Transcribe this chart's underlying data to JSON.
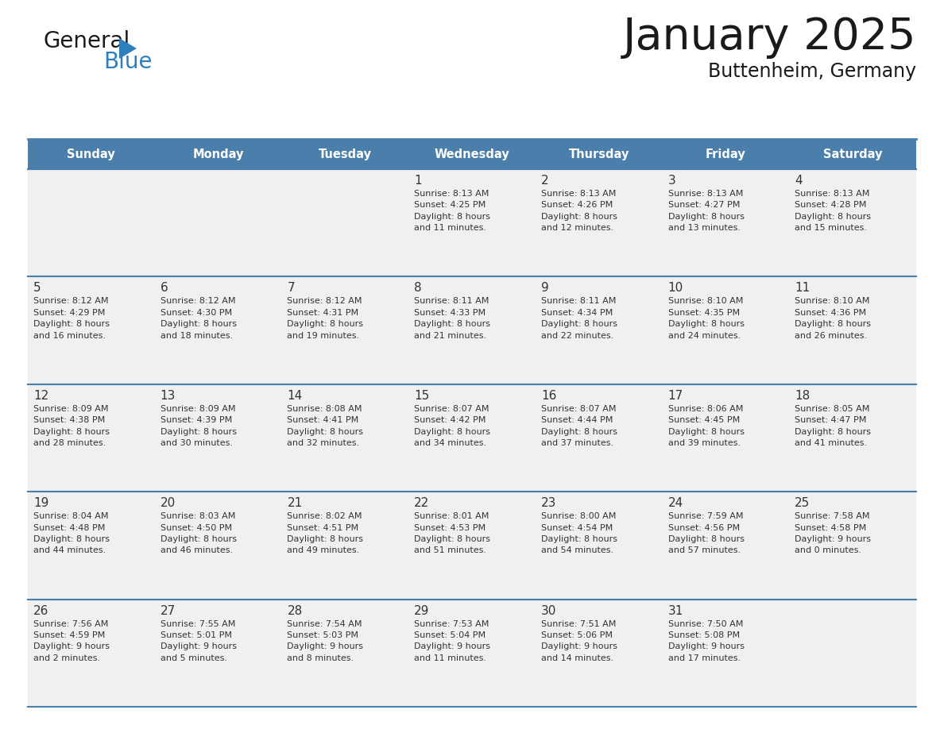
{
  "title": "January 2025",
  "subtitle": "Buttenheim, Germany",
  "days_of_week": [
    "Sunday",
    "Monday",
    "Tuesday",
    "Wednesday",
    "Thursday",
    "Friday",
    "Saturday"
  ],
  "header_bg": "#4A7EAB",
  "header_text": "#FFFFFF",
  "cell_bg": "#F0F0F0",
  "separator_color": "#4A7EAB",
  "text_color": "#333333",
  "logo_dark": "#1a1a1a",
  "logo_blue": "#2E7FBC",
  "title_color": "#1a1a1a",
  "subtitle_color": "#1a1a1a",
  "calendar_data": [
    [
      {
        "day": "",
        "info": ""
      },
      {
        "day": "",
        "info": ""
      },
      {
        "day": "",
        "info": ""
      },
      {
        "day": "1",
        "info": "Sunrise: 8:13 AM\nSunset: 4:25 PM\nDaylight: 8 hours\nand 11 minutes."
      },
      {
        "day": "2",
        "info": "Sunrise: 8:13 AM\nSunset: 4:26 PM\nDaylight: 8 hours\nand 12 minutes."
      },
      {
        "day": "3",
        "info": "Sunrise: 8:13 AM\nSunset: 4:27 PM\nDaylight: 8 hours\nand 13 minutes."
      },
      {
        "day": "4",
        "info": "Sunrise: 8:13 AM\nSunset: 4:28 PM\nDaylight: 8 hours\nand 15 minutes."
      }
    ],
    [
      {
        "day": "5",
        "info": "Sunrise: 8:12 AM\nSunset: 4:29 PM\nDaylight: 8 hours\nand 16 minutes."
      },
      {
        "day": "6",
        "info": "Sunrise: 8:12 AM\nSunset: 4:30 PM\nDaylight: 8 hours\nand 18 minutes."
      },
      {
        "day": "7",
        "info": "Sunrise: 8:12 AM\nSunset: 4:31 PM\nDaylight: 8 hours\nand 19 minutes."
      },
      {
        "day": "8",
        "info": "Sunrise: 8:11 AM\nSunset: 4:33 PM\nDaylight: 8 hours\nand 21 minutes."
      },
      {
        "day": "9",
        "info": "Sunrise: 8:11 AM\nSunset: 4:34 PM\nDaylight: 8 hours\nand 22 minutes."
      },
      {
        "day": "10",
        "info": "Sunrise: 8:10 AM\nSunset: 4:35 PM\nDaylight: 8 hours\nand 24 minutes."
      },
      {
        "day": "11",
        "info": "Sunrise: 8:10 AM\nSunset: 4:36 PM\nDaylight: 8 hours\nand 26 minutes."
      }
    ],
    [
      {
        "day": "12",
        "info": "Sunrise: 8:09 AM\nSunset: 4:38 PM\nDaylight: 8 hours\nand 28 minutes."
      },
      {
        "day": "13",
        "info": "Sunrise: 8:09 AM\nSunset: 4:39 PM\nDaylight: 8 hours\nand 30 minutes."
      },
      {
        "day": "14",
        "info": "Sunrise: 8:08 AM\nSunset: 4:41 PM\nDaylight: 8 hours\nand 32 minutes."
      },
      {
        "day": "15",
        "info": "Sunrise: 8:07 AM\nSunset: 4:42 PM\nDaylight: 8 hours\nand 34 minutes."
      },
      {
        "day": "16",
        "info": "Sunrise: 8:07 AM\nSunset: 4:44 PM\nDaylight: 8 hours\nand 37 minutes."
      },
      {
        "day": "17",
        "info": "Sunrise: 8:06 AM\nSunset: 4:45 PM\nDaylight: 8 hours\nand 39 minutes."
      },
      {
        "day": "18",
        "info": "Sunrise: 8:05 AM\nSunset: 4:47 PM\nDaylight: 8 hours\nand 41 minutes."
      }
    ],
    [
      {
        "day": "19",
        "info": "Sunrise: 8:04 AM\nSunset: 4:48 PM\nDaylight: 8 hours\nand 44 minutes."
      },
      {
        "day": "20",
        "info": "Sunrise: 8:03 AM\nSunset: 4:50 PM\nDaylight: 8 hours\nand 46 minutes."
      },
      {
        "day": "21",
        "info": "Sunrise: 8:02 AM\nSunset: 4:51 PM\nDaylight: 8 hours\nand 49 minutes."
      },
      {
        "day": "22",
        "info": "Sunrise: 8:01 AM\nSunset: 4:53 PM\nDaylight: 8 hours\nand 51 minutes."
      },
      {
        "day": "23",
        "info": "Sunrise: 8:00 AM\nSunset: 4:54 PM\nDaylight: 8 hours\nand 54 minutes."
      },
      {
        "day": "24",
        "info": "Sunrise: 7:59 AM\nSunset: 4:56 PM\nDaylight: 8 hours\nand 57 minutes."
      },
      {
        "day": "25",
        "info": "Sunrise: 7:58 AM\nSunset: 4:58 PM\nDaylight: 9 hours\nand 0 minutes."
      }
    ],
    [
      {
        "day": "26",
        "info": "Sunrise: 7:56 AM\nSunset: 4:59 PM\nDaylight: 9 hours\nand 2 minutes."
      },
      {
        "day": "27",
        "info": "Sunrise: 7:55 AM\nSunset: 5:01 PM\nDaylight: 9 hours\nand 5 minutes."
      },
      {
        "day": "28",
        "info": "Sunrise: 7:54 AM\nSunset: 5:03 PM\nDaylight: 9 hours\nand 8 minutes."
      },
      {
        "day": "29",
        "info": "Sunrise: 7:53 AM\nSunset: 5:04 PM\nDaylight: 9 hours\nand 11 minutes."
      },
      {
        "day": "30",
        "info": "Sunrise: 7:51 AM\nSunset: 5:06 PM\nDaylight: 9 hours\nand 14 minutes."
      },
      {
        "day": "31",
        "info": "Sunrise: 7:50 AM\nSunset: 5:08 PM\nDaylight: 9 hours\nand 17 minutes."
      },
      {
        "day": "",
        "info": ""
      }
    ]
  ]
}
